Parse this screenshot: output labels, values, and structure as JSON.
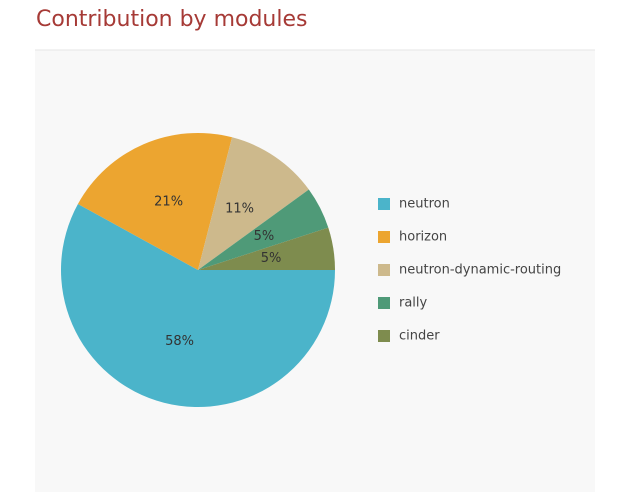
{
  "chart_data": {
    "type": "pie",
    "title": "Contribution by modules",
    "categories": [
      "neutron",
      "horizon",
      "neutron-dynamic-routing",
      "rally",
      "cinder"
    ],
    "values": [
      58,
      21,
      11,
      5,
      5
    ],
    "value_labels": [
      "58%",
      "21%",
      "11%",
      "5%",
      "5%"
    ],
    "colors": [
      "#4bb4ca",
      "#eca530",
      "#cdb98c",
      "#4f9a78",
      "#7e8c4e"
    ]
  }
}
